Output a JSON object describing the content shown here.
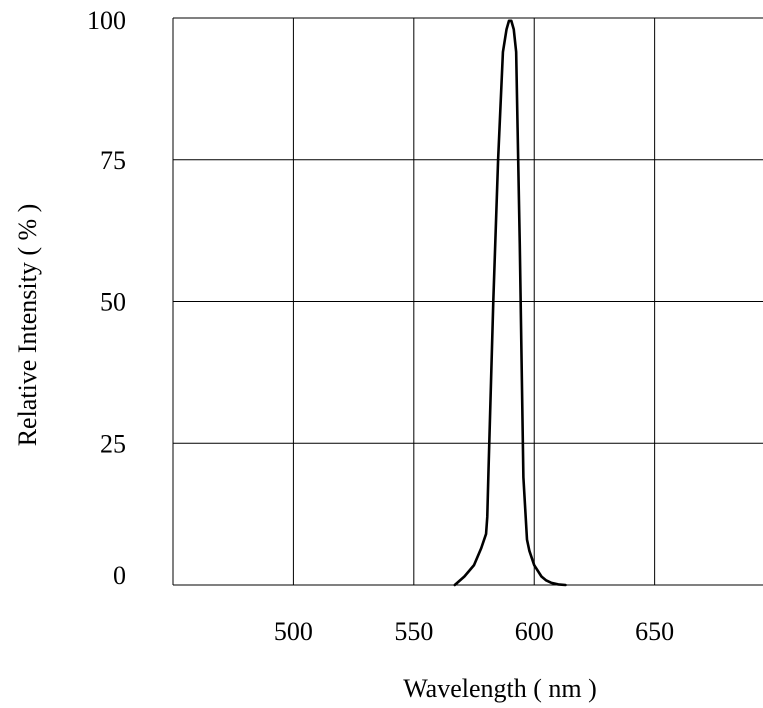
{
  "chart_data": {
    "type": "line",
    "title": "",
    "xlabel": "Wavelength ( nm )",
    "ylabel": "Relative Intensity ( % )",
    "xlim": [
      450,
      695
    ],
    "ylim": [
      0,
      100
    ],
    "x_ticks": [
      500,
      550,
      600,
      650
    ],
    "y_ticks": [
      0,
      25,
      50,
      75,
      100
    ],
    "x_tick_labels": [
      "500",
      "550",
      "600",
      "650"
    ],
    "y_tick_labels": [
      "0",
      "25",
      "50",
      "75",
      "100"
    ],
    "grid": true,
    "legend": "none",
    "colors": {
      "line": "#000000",
      "grid": "#000000",
      "background": "#ffffff"
    },
    "series": [
      {
        "x": [
          567,
          571,
          575,
          578,
          580,
          580.5,
          581,
          583,
          585,
          587,
          588.5,
          589.5,
          590.5,
          591.5,
          592.5,
          594,
          595.5,
          597,
          598,
          600,
          603,
          605,
          607,
          610,
          613
        ],
        "y": [
          0,
          1.5,
          3.5,
          6.5,
          9,
          12,
          20,
          50,
          75,
          94,
          98,
          99.5,
          99.5,
          98,
          94,
          60,
          19,
          8,
          6,
          3.5,
          1.5,
          0.8,
          0.4,
          0.1,
          0
        ]
      }
    ]
  }
}
